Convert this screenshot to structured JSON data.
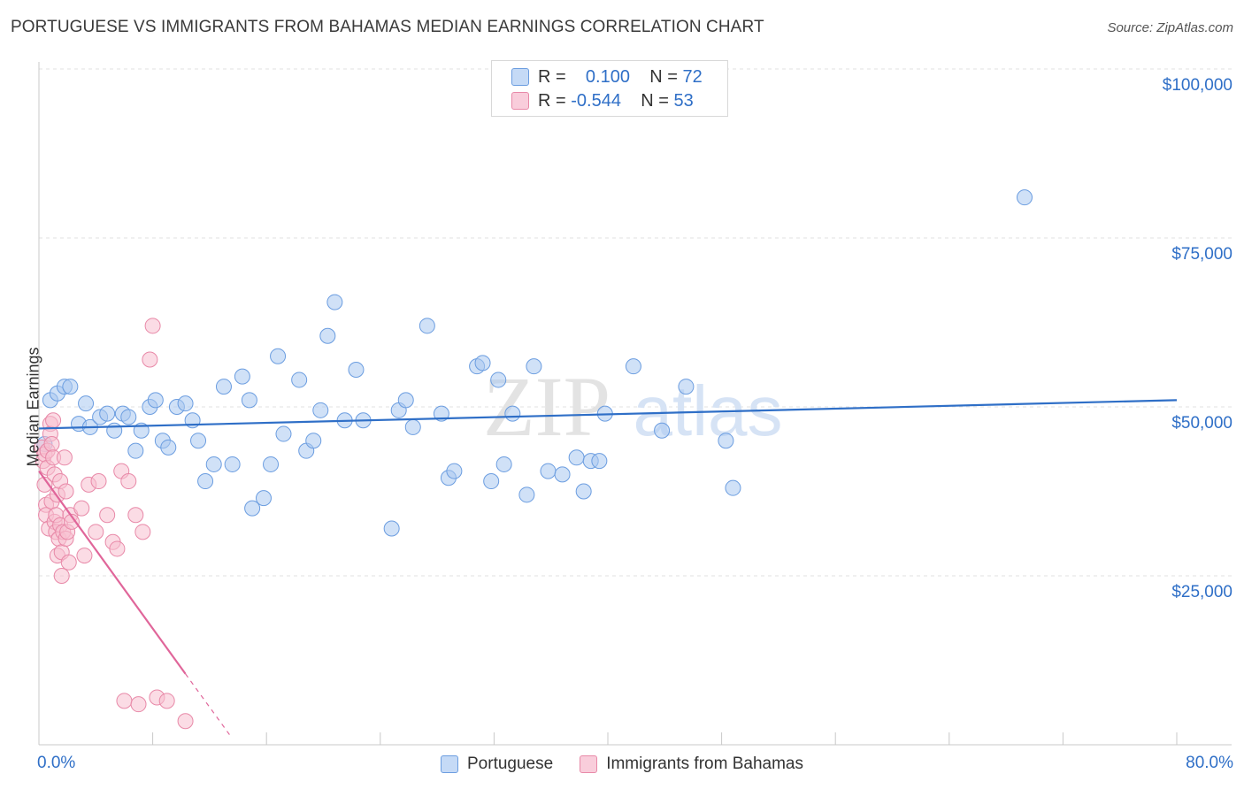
{
  "title": "PORTUGUESE VS IMMIGRANTS FROM BAHAMAS MEDIAN EARNINGS CORRELATION CHART",
  "source": "Source: ZipAtlas.com",
  "watermark": {
    "zip": "ZIP",
    "atlas": "atlas"
  },
  "legend": {
    "rows": [
      {
        "r_label": "R =",
        "r_value": "0.100",
        "n_label": "N =",
        "n_value": "72"
      },
      {
        "r_label": "R =",
        "r_value": "-0.544",
        "n_label": "N =",
        "n_value": "53"
      }
    ]
  },
  "bottom_legend": [
    "Portuguese",
    "Immigrants from Bahamas"
  ],
  "x_axis": {
    "min_label": "0.0%",
    "max_label": "80.0%"
  },
  "chart_data": {
    "type": "scatter",
    "title": "PORTUGUESE VS IMMIGRANTS FROM BAHAMAS MEDIAN EARNINGS CORRELATION CHART",
    "xlabel": "",
    "ylabel": "Median Earnings",
    "xlim": [
      0,
      80
    ],
    "ylim": [
      0,
      102000
    ],
    "y_ticks": [
      25000,
      50000,
      75000,
      100000
    ],
    "y_tick_labels": [
      "$25,000",
      "$50,000",
      "$75,000",
      "$100,000"
    ],
    "series": [
      {
        "name": "Portuguese",
        "color": "#6b9de0",
        "fill": "#aac8f0",
        "trend": {
          "x": [
            0,
            80
          ],
          "y": [
            46800,
            51000
          ],
          "color": "#2f6fc7"
        },
        "points": [
          [
            0.4,
            44500
          ],
          [
            0.8,
            51000
          ],
          [
            1.3,
            52000
          ],
          [
            1.8,
            53000
          ],
          [
            2.2,
            53000
          ],
          [
            2.8,
            47500
          ],
          [
            3.3,
            50500
          ],
          [
            3.6,
            47000
          ],
          [
            4.3,
            48500
          ],
          [
            4.8,
            49000
          ],
          [
            5.3,
            46500
          ],
          [
            5.9,
            49000
          ],
          [
            6.3,
            48500
          ],
          [
            6.8,
            43500
          ],
          [
            7.2,
            46500
          ],
          [
            7.8,
            50000
          ],
          [
            8.2,
            51000
          ],
          [
            8.7,
            45000
          ],
          [
            9.1,
            44000
          ],
          [
            9.7,
            50000
          ],
          [
            10.3,
            50500
          ],
          [
            10.8,
            48000
          ],
          [
            11.2,
            45000
          ],
          [
            11.7,
            39000
          ],
          [
            12.3,
            41500
          ],
          [
            13.0,
            53000
          ],
          [
            13.6,
            41500
          ],
          [
            14.3,
            54500
          ],
          [
            14.8,
            51000
          ],
          [
            15.0,
            35000
          ],
          [
            15.8,
            36500
          ],
          [
            16.3,
            41500
          ],
          [
            16.8,
            57500
          ],
          [
            17.2,
            46000
          ],
          [
            18.3,
            54000
          ],
          [
            18.8,
            43500
          ],
          [
            19.3,
            45000
          ],
          [
            19.8,
            49500
          ],
          [
            20.3,
            60500
          ],
          [
            20.8,
            65500
          ],
          [
            21.5,
            48000
          ],
          [
            22.3,
            55500
          ],
          [
            22.8,
            48000
          ],
          [
            24.8,
            32000
          ],
          [
            25.3,
            49500
          ],
          [
            25.8,
            51000
          ],
          [
            26.3,
            47000
          ],
          [
            27.3,
            62000
          ],
          [
            28.3,
            49000
          ],
          [
            28.8,
            39500
          ],
          [
            29.2,
            40500
          ],
          [
            30.8,
            56000
          ],
          [
            31.2,
            56500
          ],
          [
            31.8,
            39000
          ],
          [
            32.3,
            54000
          ],
          [
            32.7,
            41500
          ],
          [
            33.3,
            49000
          ],
          [
            34.3,
            37000
          ],
          [
            34.8,
            56000
          ],
          [
            35.8,
            40500
          ],
          [
            36.8,
            40000
          ],
          [
            37.8,
            42500
          ],
          [
            38.3,
            37500
          ],
          [
            38.8,
            42000
          ],
          [
            39.4,
            42000
          ],
          [
            39.8,
            49000
          ],
          [
            41.8,
            56000
          ],
          [
            43.8,
            46500
          ],
          [
            45.5,
            53000
          ],
          [
            48.3,
            45000
          ],
          [
            48.8,
            38000
          ],
          [
            69.3,
            81000
          ]
        ]
      },
      {
        "name": "Immigrants from Bahamas",
        "color": "#e889a8",
        "fill": "#f7bfd0",
        "trend": {
          "x": [
            0,
            10.3
          ],
          "y": [
            40500,
            10500
          ],
          "dash_x": [
            10.3,
            13.4
          ],
          "dash_y": [
            10500,
            1500
          ],
          "color": "#e0669a"
        },
        "points": [
          [
            0.2,
            44000
          ],
          [
            0.3,
            42000
          ],
          [
            0.4,
            43000
          ],
          [
            0.4,
            38500
          ],
          [
            0.5,
            35500
          ],
          [
            0.5,
            34000
          ],
          [
            0.6,
            41000
          ],
          [
            0.6,
            43500
          ],
          [
            0.7,
            32000
          ],
          [
            0.8,
            47500
          ],
          [
            0.8,
            46000
          ],
          [
            0.9,
            36000
          ],
          [
            0.9,
            44500
          ],
          [
            1.0,
            48000
          ],
          [
            1.0,
            42500
          ],
          [
            1.1,
            40000
          ],
          [
            1.1,
            33000
          ],
          [
            1.2,
            34000
          ],
          [
            1.2,
            31500
          ],
          [
            1.3,
            28000
          ],
          [
            1.3,
            37000
          ],
          [
            1.4,
            30500
          ],
          [
            1.5,
            32500
          ],
          [
            1.5,
            39000
          ],
          [
            1.6,
            28500
          ],
          [
            1.6,
            25000
          ],
          [
            1.7,
            31500
          ],
          [
            1.8,
            42500
          ],
          [
            1.9,
            37500
          ],
          [
            1.9,
            30500
          ],
          [
            2.0,
            31500
          ],
          [
            2.1,
            27000
          ],
          [
            2.2,
            34000
          ],
          [
            2.3,
            33000
          ],
          [
            3.0,
            35000
          ],
          [
            3.2,
            28000
          ],
          [
            3.5,
            38500
          ],
          [
            4.0,
            31500
          ],
          [
            4.2,
            39000
          ],
          [
            4.8,
            34000
          ],
          [
            5.2,
            30000
          ],
          [
            5.5,
            29000
          ],
          [
            5.8,
            40500
          ],
          [
            6.0,
            6500
          ],
          [
            6.3,
            39000
          ],
          [
            6.8,
            34000
          ],
          [
            7.0,
            6000
          ],
          [
            7.3,
            31500
          ],
          [
            7.8,
            57000
          ],
          [
            8.0,
            62000
          ],
          [
            8.3,
            7000
          ],
          [
            9.0,
            6500
          ],
          [
            10.3,
            3500
          ]
        ]
      }
    ]
  }
}
